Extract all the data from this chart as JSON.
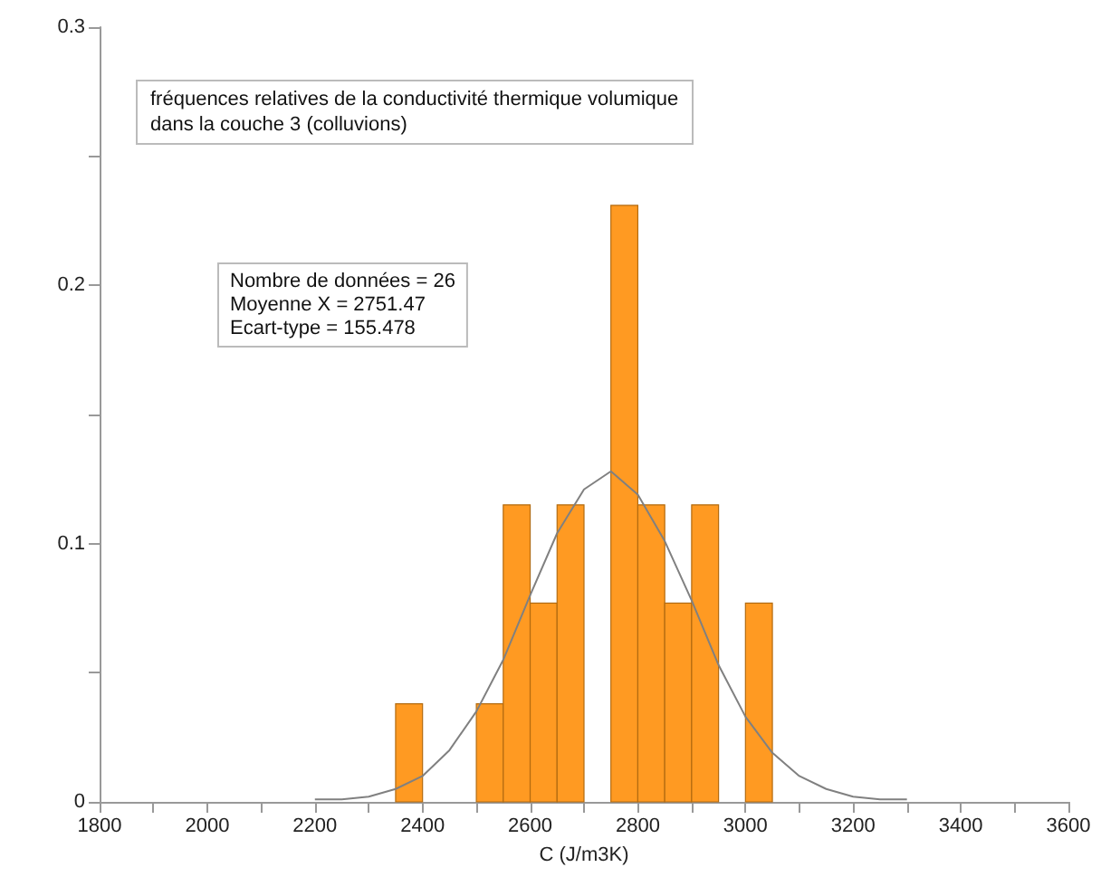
{
  "chart_data": {
    "type": "histogram",
    "title": "fréquences relatives de la conductivité thermique volumique\ndans la couche 3 (colluvions)",
    "xlabel": "C (J/m3K)",
    "annotations": [
      "Nombre de données = 26\nMoyenne X = 2751.47\nEcart-type = 155.478"
    ],
    "bins": [
      2350,
      2400,
      2450,
      2500,
      2550,
      2600,
      2650,
      2700,
      2750,
      2800,
      2850,
      2900,
      2950,
      3000,
      3050
    ],
    "values": [
      0.038,
      0,
      0,
      0.038,
      0.115,
      0.077,
      0.115,
      0,
      0.231,
      0.115,
      0.077,
      0.115,
      0,
      0.077
    ],
    "color": "#ff9a22",
    "series": [
      {
        "type": "line",
        "color": "#808080",
        "x": [
          2200,
          2250,
          2300,
          2350,
          2400,
          2450,
          2500,
          2550,
          2600,
          2650,
          2700,
          2750,
          2800,
          2850,
          2900,
          2950,
          3000,
          3050,
          3100,
          3150,
          3200,
          3250,
          3300
        ],
        "values": [
          0.001,
          0.001,
          0.002,
          0.005,
          0.01,
          0.02,
          0.035,
          0.055,
          0.08,
          0.104,
          0.121,
          0.128,
          0.119,
          0.101,
          0.078,
          0.053,
          0.033,
          0.019,
          0.01,
          0.005,
          0.002,
          0.001,
          0.001
        ]
      }
    ],
    "xlim": [
      1800,
      3600
    ],
    "xticks": [
      1800,
      {
        "value": 1900,
        "label": null
      },
      2000,
      {
        "value": 2100,
        "label": null
      },
      2200,
      {
        "value": 2300,
        "label": null
      },
      2400,
      {
        "value": 2500,
        "label": null
      },
      2600,
      {
        "value": 2700,
        "label": null
      },
      2800,
      {
        "value": 2900,
        "label": null
      },
      3000,
      {
        "value": 3100,
        "label": null
      },
      3200,
      {
        "value": 3300,
        "label": null
      },
      3400,
      {
        "value": 3500,
        "label": null
      },
      3600
    ],
    "ylim": [
      0,
      0.3
    ],
    "yticks": [
      0,
      {
        "value": 0.05,
        "label": null
      },
      0.1,
      {
        "value": 0.15,
        "label": null
      },
      0.2,
      {
        "value": 0.25,
        "label": null
      },
      0.3
    ],
    "grid": false
  }
}
